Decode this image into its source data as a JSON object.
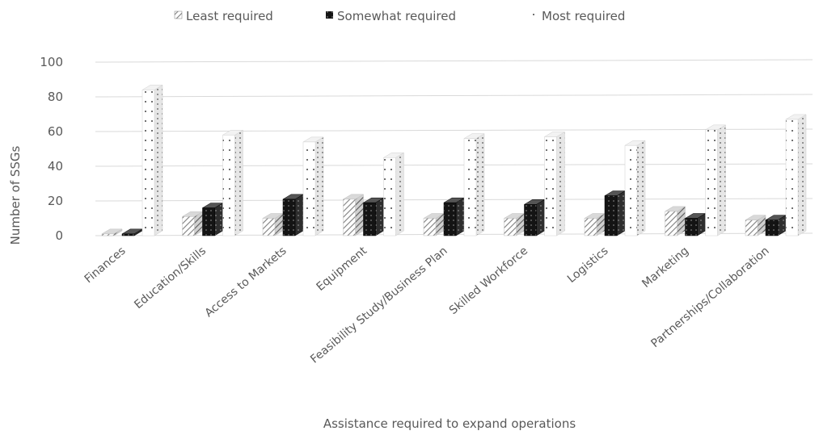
{
  "chart_data": {
    "type": "bar",
    "style": "3d-clustered-column",
    "title": "",
    "xlabel": "Assistance required to expand operations",
    "ylabel": "Number  of SSGs",
    "ylim": [
      0,
      100
    ],
    "yticks": [
      "0",
      "20",
      "40",
      "60",
      "80",
      "100"
    ],
    "grid": true,
    "legend_position": "top",
    "categories": [
      "Finances",
      "Education/Skills",
      "Access to Markets",
      "Equipment",
      "Feasibility Study/Business Plan",
      "Skilled Workforce",
      "Logistics",
      "Marketing",
      "Partnerships/Collaboration"
    ],
    "series": [
      {
        "name": "Least required",
        "pattern": "diagonal-hatch",
        "color": "#8c8c8c",
        "values": [
          1,
          11,
          10,
          21,
          10,
          10,
          10,
          14,
          9
        ]
      },
      {
        "name": "Somewhat required",
        "pattern": "dark-dotted",
        "color": "#111111",
        "values": [
          1,
          16,
          21,
          19,
          19,
          18,
          23,
          10,
          9
        ]
      },
      {
        "name": "Most required",
        "pattern": "light-dotted",
        "color": "#ffffff",
        "values": [
          84,
          58,
          54,
          45,
          56,
          57,
          52,
          61,
          67
        ]
      }
    ]
  }
}
